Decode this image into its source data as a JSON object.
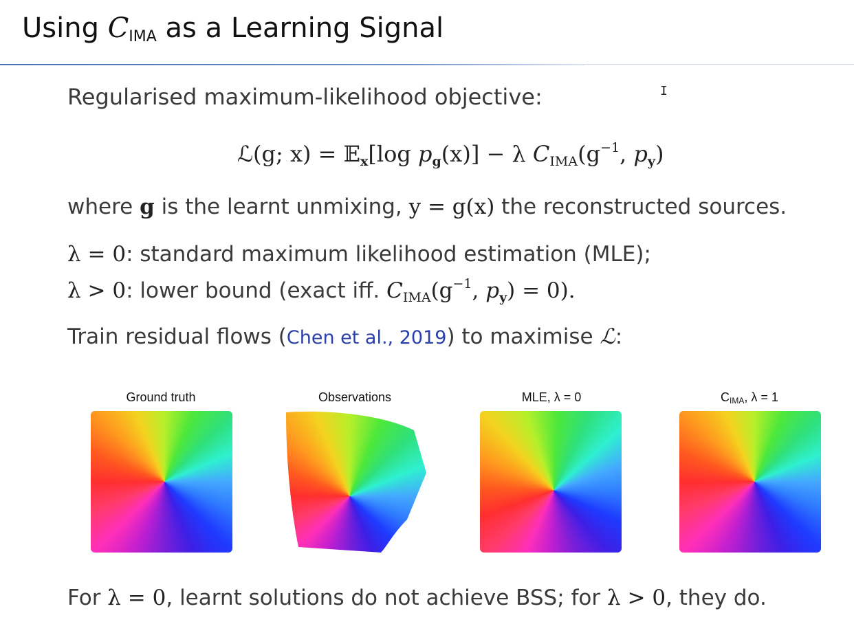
{
  "title": {
    "prefix": "Using ",
    "symbol": "C",
    "symbol_sub": "IMA",
    "suffix": " as a Learning Signal"
  },
  "text": {
    "objective_intro": "Regularised maximum-likelihood objective:",
    "equation": {
      "lhs": "ℒ(g; x) = ",
      "expect": "𝔼",
      "expect_sub": "x",
      "body1": "[log ",
      "p": "p",
      "p_sub": "g",
      "body2": "(x)] − λ ",
      "c": "C",
      "c_sub": "IMA",
      "body3": "(g",
      "g_sup": "−1",
      "body4": ", ",
      "p2": "p",
      "p2_sub": "y",
      "body5": ")"
    },
    "where_line": {
      "a": "where ",
      "g": "g",
      "b": " is the learnt unmixing, ",
      "eq": "y = g(x)",
      "c": " the reconstructed sources."
    },
    "lambda0": {
      "lam": "λ = 0",
      "rest": ": standard maximum likelihood estimation (MLE);"
    },
    "lambda_pos": {
      "lam": "λ > 0",
      "rest": ": lower bound (exact iff. ",
      "c": "C",
      "c_sub": "IMA",
      "m1": "(g",
      "sup": "−1",
      "m2": ", ",
      "p": "p",
      "p_sub": "y",
      "m3": ") = 0)."
    },
    "train": {
      "a": "Train residual flows (",
      "link": "Chen et al., 2019",
      "b": ") to maximise ",
      "L": "ℒ",
      "c": ":"
    },
    "conclusion": {
      "a": "For ",
      "l1": "λ = 0",
      "b": ", learnt solutions do not achieve BSS; for ",
      "l2": "λ > 0",
      "c": ", they do."
    }
  },
  "panels": [
    {
      "title": "Ground truth"
    },
    {
      "title": "Observations"
    },
    {
      "title": "MLE, ",
      "lambda": "λ = 0"
    },
    {
      "title_c": "C",
      "title_sub": "IMA",
      "title_rest": ", ",
      "lambda": "λ = 1"
    }
  ],
  "cursor_icon": "text-cursor-icon"
}
